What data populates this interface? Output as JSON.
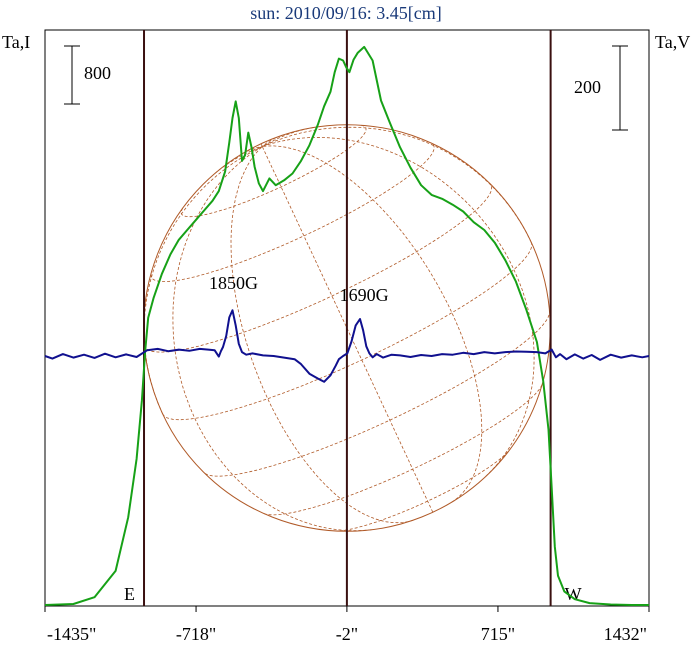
{
  "chart_data": {
    "type": "line",
    "title": "sun: 2010/09/16: 3.45[cm]",
    "left_axis_label": "Ta,I",
    "right_axis_label": "Ta,V",
    "left_scale_bar": "800",
    "right_scale_bar": "200",
    "x_ticks": [
      {
        "value": -1435,
        "label": "-1435\""
      },
      {
        "value": -718,
        "label": "-718\""
      },
      {
        "value": -2,
        "label": "-2\""
      },
      {
        "value": 715,
        "label": "715\""
      },
      {
        "value": 1432,
        "label": "1432\""
      }
    ],
    "xlim": [
      -1435,
      1432
    ],
    "limb_markers": [
      {
        "label": "E",
        "x": -965
      },
      {
        "label": "W",
        "x": 965
      }
    ],
    "center_marker_x": -2,
    "annotations": [
      {
        "label": "1850G",
        "x": -540
      },
      {
        "label": "1690G",
        "x": 80
      }
    ],
    "solar_disk_radius": 965,
    "colors": {
      "title": "#1a3a7a",
      "intensity": "#17a117",
      "polarization": "#10108f",
      "disk": "#b05a28",
      "markers": "#3a1010",
      "frame": "#000000"
    },
    "series": [
      {
        "name": "I",
        "units": "K (Ta)",
        "x": [
          -1435,
          -1300,
          -1200,
          -1100,
          -1040,
          -1000,
          -975,
          -960,
          -945,
          -920,
          -880,
          -840,
          -800,
          -760,
          -720,
          -680,
          -640,
          -610,
          -580,
          -560,
          -545,
          -530,
          -515,
          -500,
          -485,
          -470,
          -455,
          -440,
          -420,
          -400,
          -370,
          -340,
          -300,
          -260,
          -220,
          -180,
          -140,
          -110,
          -80,
          -60,
          -40,
          -20,
          -5,
          10,
          30,
          50,
          80,
          120,
          160,
          200,
          250,
          300,
          350,
          400,
          450,
          500,
          550,
          600,
          650,
          700,
          750,
          800,
          850,
          900,
          930,
          955,
          970,
          985,
          1000,
          1030,
          1080,
          1150,
          1250,
          1350,
          1432
        ],
        "values": [
          0,
          10,
          80,
          350,
          900,
          1500,
          2100,
          2600,
          2950,
          3150,
          3400,
          3600,
          3750,
          3850,
          3950,
          4050,
          4150,
          4250,
          4450,
          4750,
          5000,
          5170,
          5000,
          4560,
          4620,
          4850,
          4700,
          4500,
          4330,
          4250,
          4380,
          4310,
          4360,
          4430,
          4560,
          4720,
          4930,
          5120,
          5270,
          5470,
          5610,
          5590,
          5520,
          5470,
          5600,
          5670,
          5730,
          5590,
          5180,
          4960,
          4700,
          4490,
          4310,
          4210,
          4170,
          4110,
          4040,
          3930,
          3850,
          3720,
          3540,
          3320,
          3030,
          2700,
          2300,
          1800,
          1200,
          600,
          300,
          140,
          60,
          20,
          5,
          0,
          0
        ]
      },
      {
        "name": "V",
        "units": "K (Ta)",
        "x": [
          -1435,
          -1400,
          -1350,
          -1300,
          -1250,
          -1200,
          -1150,
          -1100,
          -1050,
          -1000,
          -950,
          -900,
          -850,
          -800,
          -750,
          -700,
          -660,
          -630,
          -610,
          -600,
          -590,
          -575,
          -560,
          -545,
          -530,
          -515,
          -500,
          -480,
          -450,
          -400,
          -350,
          -300,
          -250,
          -220,
          -180,
          -140,
          -110,
          -80,
          -55,
          -40,
          -20,
          0,
          20,
          40,
          60,
          75,
          90,
          105,
          120,
          140,
          170,
          210,
          250,
          300,
          350,
          400,
          450,
          500,
          550,
          600,
          650,
          700,
          750,
          800,
          850,
          900,
          940,
          970,
          990,
          1010,
          1040,
          1080,
          1120,
          1160,
          1200,
          1250,
          1300,
          1350,
          1400,
          1432
        ],
        "values": [
          0,
          -8,
          6,
          -5,
          4,
          -6,
          7,
          -4,
          5,
          -3,
          18,
          22,
          15,
          20,
          16,
          22,
          20,
          18,
          -2,
          15,
          28,
          62,
          120,
          142,
          95,
          38,
          12,
          4,
          8,
          2,
          0,
          -5,
          -10,
          -25,
          -55,
          -70,
          -80,
          -60,
          -30,
          -10,
          0,
          8,
          45,
          95,
          115,
          80,
          30,
          8,
          -4,
          6,
          -5,
          4,
          2,
          -3,
          3,
          0,
          6,
          4,
          10,
          6,
          12,
          8,
          12,
          14,
          13,
          12,
          8,
          20,
          -4,
          6,
          -10,
          5,
          -8,
          3,
          -12,
          4,
          -5,
          2,
          -4,
          0
        ]
      }
    ]
  }
}
